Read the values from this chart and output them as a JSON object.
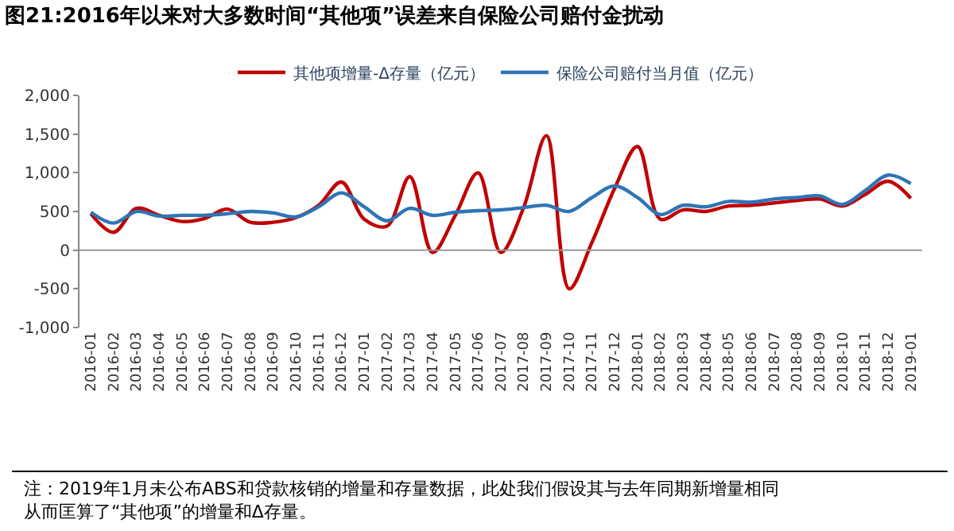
{
  "chart_data": {
    "type": "line",
    "title": "图21:2016年以来对大多数时间“其他项”误差来自保险公司赔付金扰动",
    "categories": [
      "2016-01",
      "2016-02",
      "2016-03",
      "2016-04",
      "2016-05",
      "2016-06",
      "2016-07",
      "2016-08",
      "2016-09",
      "2016-10",
      "2016-11",
      "2016-12",
      "2017-01",
      "2017-02",
      "2017-03",
      "2017-04",
      "2017-05",
      "2017-06",
      "2017-07",
      "2017-08",
      "2017-09",
      "2017-10",
      "2017-11",
      "2017-12",
      "2018-01",
      "2018-02",
      "2018-03",
      "2018-04",
      "2018-05",
      "2018-06",
      "2018-07",
      "2018-08",
      "2018-09",
      "2018-10",
      "2018-11",
      "2018-12",
      "2019-01"
    ],
    "series": [
      {
        "name": "其他项增量-Δ存量（亿元）",
        "color": "#c00000",
        "values": [
          470,
          230,
          540,
          450,
          370,
          410,
          530,
          360,
          360,
          420,
          580,
          880,
          400,
          310,
          950,
          -30,
          450,
          1000,
          -30,
          550,
          1480,
          -500,
          100,
          800,
          1340,
          400,
          520,
          500,
          570,
          580,
          610,
          640,
          660,
          570,
          720,
          890,
          670
        ]
      },
      {
        "name": "保险公司赔付当月值（亿元）",
        "color": "#2e75b6",
        "values": [
          490,
          350,
          500,
          440,
          450,
          450,
          470,
          500,
          480,
          430,
          560,
          740,
          560,
          380,
          540,
          450,
          490,
          510,
          520,
          550,
          580,
          500,
          680,
          830,
          680,
          460,
          580,
          560,
          630,
          620,
          660,
          680,
          700,
          590,
          770,
          970,
          860
        ]
      }
    ],
    "ylim": [
      -1000,
      2000
    ],
    "yticks": [
      {
        "value": -1000,
        "label": "-1,000"
      },
      -500,
      0,
      500,
      {
        "value": 1000,
        "label": "1,000"
      },
      {
        "value": 1500,
        "label": "1,500"
      },
      {
        "value": 2000,
        "label": "2,000"
      }
    ],
    "ref_lines": [
      {
        "axis": "y",
        "value": 0,
        "color": "#999999"
      }
    ],
    "grid": false,
    "legend": "top",
    "marker": "none",
    "line_style": "solid",
    "annotations": [
      "注：2019年1月未公布ABS和贷款核销的增量和存量数据，此处我们假设其与去年同期新增量相同从而匡算了“其他项”的增量和Δ存量。"
    ]
  }
}
